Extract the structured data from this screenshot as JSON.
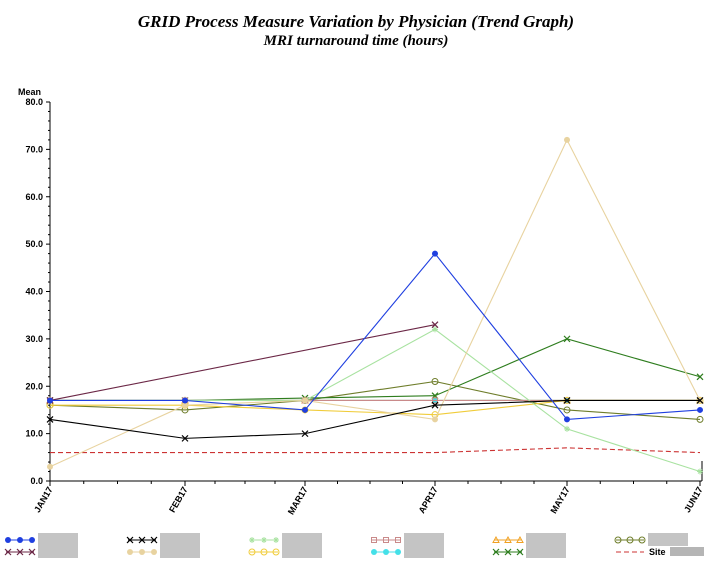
{
  "title": "GRID Process Measure Variation by Physician (Trend Graph)",
  "subtitle": "MRI turnaround time (hours)",
  "chart_data": {
    "type": "line",
    "title": "GRID Process Measure Variation by Physician (Trend Graph)",
    "subtitle": "MRI turnaround time (hours)",
    "ylabel": "Mean",
    "xlabel": "",
    "ylim": [
      0,
      80
    ],
    "yticks": [
      "0.0",
      "10.0",
      "20.0",
      "30.0",
      "40.0",
      "50.0",
      "60.0",
      "70.0",
      "80.0"
    ],
    "categories": [
      "JAN17",
      "FEB17",
      "MAR17",
      "APR17",
      "MAY17",
      "JUN17"
    ],
    "grid": false,
    "legend_position": "bottom",
    "series": [
      {
        "key": "s1",
        "color": "#1f3fe0",
        "marker": "dot",
        "values": [
          17,
          17,
          15,
          48,
          13,
          15
        ]
      },
      {
        "key": "s2",
        "color": "#6b2746",
        "marker": "x",
        "values": [
          17,
          null,
          null,
          33,
          null,
          null
        ]
      },
      {
        "key": "s3",
        "color": "#000000",
        "marker": "x",
        "values": [
          13,
          9,
          10,
          16,
          17,
          17
        ]
      },
      {
        "key": "s4",
        "color": "#e8d3a0",
        "marker": "dot",
        "values": [
          3,
          16,
          17,
          13,
          72,
          17
        ]
      },
      {
        "key": "s5",
        "color": "#a8e2a0",
        "marker": "star",
        "values": [
          17,
          17,
          17,
          32,
          11,
          2
        ]
      },
      {
        "key": "s6",
        "color": "#f0cc3a",
        "marker": "circle",
        "values": [
          16,
          16,
          15,
          14,
          17,
          17
        ]
      },
      {
        "key": "s7",
        "color": "#c98a8a",
        "marker": "square",
        "values": [
          17,
          17,
          17,
          17,
          17,
          17
        ]
      },
      {
        "key": "s8",
        "color": "#44e0e8",
        "marker": "dot",
        "values": [
          17,
          17,
          17,
          17,
          17,
          17
        ]
      },
      {
        "key": "s9",
        "color": "#f0a020",
        "marker": "triangle",
        "values": [
          17,
          17,
          17,
          17,
          17,
          17
        ]
      },
      {
        "key": "s10",
        "color": "#2e7d1e",
        "marker": "x",
        "values": [
          17,
          17,
          17.5,
          18,
          30,
          22
        ]
      },
      {
        "key": "s11",
        "color": "#6e7d2a",
        "marker": "circle",
        "values": [
          16,
          15,
          17,
          21,
          15,
          13
        ]
      },
      {
        "key": "site",
        "name": "Site",
        "color": "#cc3333",
        "marker": "none",
        "dashed": true,
        "values": [
          6,
          6,
          6,
          6,
          7,
          6
        ]
      }
    ]
  }
}
